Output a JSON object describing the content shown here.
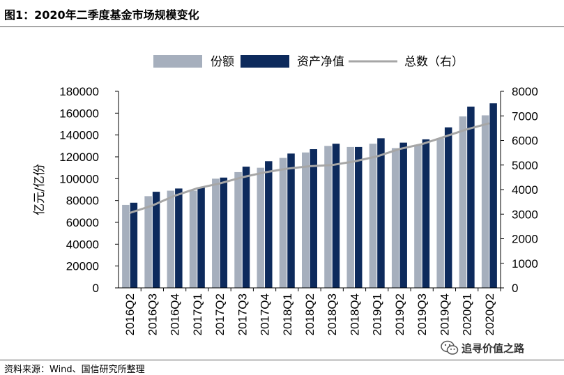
{
  "title": "图1：2020年二季度基金市场规模变化",
  "source": "资料来源：Wind、国信研究所整理",
  "watermark": "追寻价值之路",
  "chart_data": {
    "type": "bar",
    "categories": [
      "2016Q2",
      "2016Q3",
      "2016Q4",
      "2017Q1",
      "2017Q2",
      "2017Q3",
      "2017Q4",
      "2018Q1",
      "2018Q2",
      "2018Q3",
      "2018Q4",
      "2019Q1",
      "2019Q2",
      "2019Q3",
      "2019Q4",
      "2020Q1",
      "2020Q2"
    ],
    "series": [
      {
        "name": "份额",
        "type": "bar",
        "axis": "left",
        "color": "#a6afbd",
        "values": [
          76000,
          84000,
          89000,
          89000,
          100000,
          106000,
          110000,
          119000,
          124000,
          130000,
          129000,
          132000,
          128000,
          131000,
          137000,
          157000,
          158000
        ]
      },
      {
        "name": "资产净值",
        "type": "bar",
        "axis": "left",
        "color": "#0d2a5c",
        "values": [
          78000,
          88000,
          91000,
          92000,
          101000,
          111000,
          116000,
          123000,
          127000,
          132000,
          129000,
          137000,
          133000,
          136000,
          147000,
          166000,
          169000
        ]
      },
      {
        "name": "总数（右）",
        "type": "line",
        "axis": "right",
        "color": "#a6a6a6",
        "values": [
          3050,
          3350,
          3750,
          4050,
          4250,
          4500,
          4700,
          4850,
          4950,
          5000,
          5150,
          5350,
          5650,
          5850,
          6150,
          6450,
          6700
        ]
      }
    ],
    "ylabel": "亿元/亿份",
    "ylim": [
      0,
      180000
    ],
    "yticks": [
      "0",
      "20000",
      "40000",
      "60000",
      "80000",
      "100000",
      "120000",
      "140000",
      "160000",
      "180000"
    ],
    "y2lim": [
      0,
      8000
    ],
    "y2ticks": [
      "0",
      "1000",
      "2000",
      "3000",
      "4000",
      "5000",
      "6000",
      "7000",
      "8000"
    ],
    "legend_position": "top",
    "grid": false
  }
}
